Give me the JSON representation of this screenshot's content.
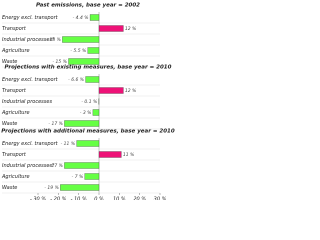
{
  "chart_data": [
    {
      "type": "bar",
      "orientation": "horizontal",
      "title": "Past emissions, base year = 2002",
      "categories": [
        "Energy excl. transport",
        "Transport",
        "Industrial processes*",
        "Agriculture",
        "Waste"
      ],
      "values": [
        -4.4,
        12,
        -18,
        -5.5,
        -15
      ],
      "value_labels": [
        "- 4.4 %",
        "12 %",
        "- 18 %",
        "- 5.5 %",
        "- 15 %"
      ],
      "colors": [
        "#66ff44",
        "#ee1177",
        "#66ff44",
        "#66ff44",
        "#66ff44"
      ],
      "xlim": [
        -30,
        30
      ]
    },
    {
      "type": "bar",
      "orientation": "horizontal",
      "title": "Projections with existing measures, base year = 2010",
      "categories": [
        "Energy excl. transport",
        "Transport",
        "Industrial processes",
        "Agriculture",
        "Waste"
      ],
      "values": [
        -6.6,
        12,
        -0.1,
        -3,
        -17
      ],
      "value_labels": [
        "- 6.6 %",
        "12 %",
        "- 0.1 %",
        "- 3 %",
        "- 17 %"
      ],
      "colors": [
        "#66ff44",
        "#ee1177",
        "#66ff44",
        "#66ff44",
        "#66ff44"
      ],
      "xlim": [
        -30,
        30
      ]
    },
    {
      "type": "bar",
      "orientation": "horizontal",
      "title": "Projections with additional measures, base year = 2010",
      "categories": [
        "Energy excl. transport",
        "Transport",
        "Industrial processes*",
        "Agriculture",
        "Waste"
      ],
      "values": [
        -11,
        11,
        -17,
        -7,
        -19
      ],
      "value_labels": [
        "- 11 %",
        "11 %",
        "- 17 %",
        "- 7 %",
        "- 19 %"
      ],
      "colors": [
        "#66ff44",
        "#ee1177",
        "#66ff44",
        "#66ff44",
        "#66ff44"
      ],
      "xlim": [
        -30,
        30
      ],
      "xticks": [
        {
          "value": -30,
          "label": "- 30 %"
        },
        {
          "value": -20,
          "label": "- 20 %"
        },
        {
          "value": -10,
          "label": "- 10 %"
        },
        {
          "value": 0,
          "label": "0 %"
        },
        {
          "value": 10,
          "label": "10 %"
        },
        {
          "value": 20,
          "label": "20 %"
        },
        {
          "value": 30,
          "label": "30 %"
        }
      ]
    }
  ]
}
